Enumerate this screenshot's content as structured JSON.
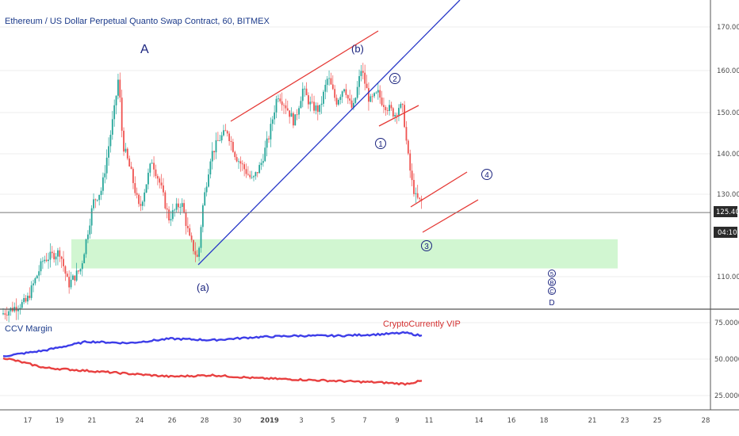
{
  "title": "Ethereum / US Dollar Perpetual Quanto Swap Contract, 60, BITMEX",
  "indicator": {
    "name": "CCV Margin",
    "watermark": "CryptoCurrently VIP",
    "y_ticks": [
      "75.0000",
      "50.0000",
      "25.0000"
    ],
    "ylim": [
      18,
      80
    ]
  },
  "price_tag": {
    "value": "125.40",
    "countdown": "04:10"
  },
  "colors": {
    "up": "#26a69a",
    "down": "#ef5350",
    "channel": "#e53935",
    "trendline": "#2838c8",
    "zone": "#c9f5c9",
    "wave": "#1a237e",
    "blue_series": "#3d3de8",
    "red_series": "#e84040",
    "price_bg": "#2b2b2b"
  },
  "wave_labels": {
    "A": "A",
    "a": "(a)",
    "b": "(b)",
    "w1": "1",
    "w2": "2",
    "w3": "3",
    "w4": "4",
    "w5": "5",
    "B": "B",
    "C": "C",
    "D": "D"
  },
  "chart_data": {
    "type": "candlestick",
    "x_ticks": [
      "17",
      "19",
      "21",
      "24",
      "26",
      "28",
      "30",
      "2019",
      "3",
      "5",
      "7",
      "9",
      "11",
      "14",
      "16",
      "18",
      "21",
      "23",
      "25",
      "28"
    ],
    "y_ticks": [
      "170.00",
      "160.00",
      "150.00",
      "140.00",
      "130.00",
      "110.00"
    ],
    "ylim": [
      100,
      178
    ],
    "last_price": 125.4,
    "support_zone": [
      112,
      119
    ],
    "price_path": [
      [
        0,
        101
      ],
      [
        6,
        104
      ],
      [
        10,
        114
      ],
      [
        14,
        116
      ],
      [
        16,
        108
      ],
      [
        19,
        112
      ],
      [
        22,
        128
      ],
      [
        24,
        131
      ],
      [
        27,
        150
      ],
      [
        28,
        158
      ],
      [
        29,
        142
      ],
      [
        31,
        135
      ],
      [
        33,
        126
      ],
      [
        36,
        138
      ],
      [
        38,
        132
      ],
      [
        40,
        124
      ],
      [
        43,
        128
      ],
      [
        45,
        119
      ],
      [
        47,
        114
      ],
      [
        48,
        126
      ],
      [
        50,
        139
      ],
      [
        52,
        143
      ],
      [
        54,
        145
      ],
      [
        56,
        139
      ],
      [
        58,
        136
      ],
      [
        60,
        133
      ],
      [
        62,
        137
      ],
      [
        64,
        144
      ],
      [
        66,
        154
      ],
      [
        68,
        151
      ],
      [
        70,
        147
      ],
      [
        72,
        155
      ],
      [
        74,
        151
      ],
      [
        76,
        150
      ],
      [
        78,
        158
      ],
      [
        80,
        152
      ],
      [
        82,
        156
      ],
      [
        83,
        152
      ],
      [
        84,
        150
      ],
      [
        86,
        160
      ],
      [
        88,
        152
      ],
      [
        90,
        154
      ],
      [
        91,
        152
      ],
      [
        93,
        150
      ],
      [
        94,
        149
      ],
      [
        95,
        151
      ],
      [
        96,
        150
      ],
      [
        97,
        140
      ],
      [
        98,
        133
      ],
      [
        99,
        129
      ],
      [
        100,
        128
      ]
    ],
    "indicator_series": [
      {
        "color": "blue",
        "values": [
          [
            0,
            52
          ],
          [
            10,
            56
          ],
          [
            20,
            62
          ],
          [
            30,
            61
          ],
          [
            40,
            64
          ],
          [
            50,
            63
          ],
          [
            60,
            65
          ],
          [
            70,
            66
          ],
          [
            80,
            66
          ],
          [
            90,
            67
          ],
          [
            96,
            68
          ],
          [
            100,
            66
          ]
        ]
      },
      {
        "color": "red",
        "values": [
          [
            0,
            51
          ],
          [
            10,
            44
          ],
          [
            20,
            42
          ],
          [
            30,
            40
          ],
          [
            40,
            38
          ],
          [
            50,
            39
          ],
          [
            60,
            37
          ],
          [
            70,
            36
          ],
          [
            80,
            35
          ],
          [
            90,
            34
          ],
          [
            96,
            33
          ],
          [
            100,
            35
          ]
        ]
      }
    ]
  }
}
